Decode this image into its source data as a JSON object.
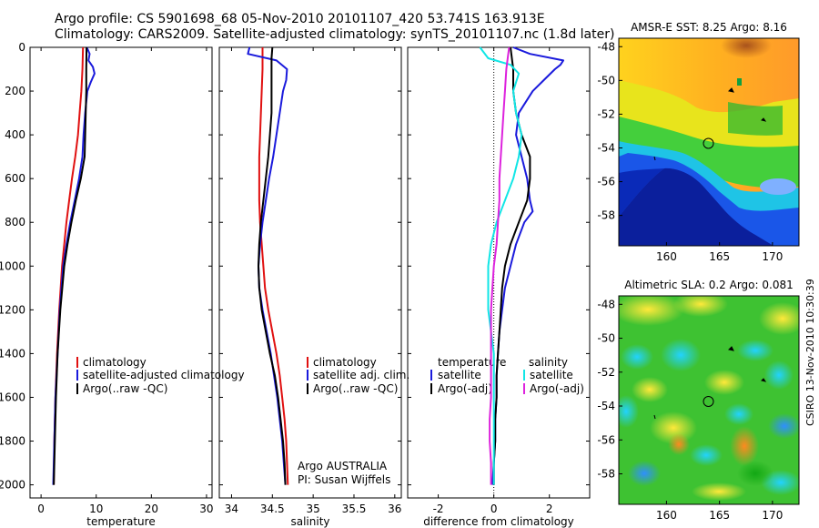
{
  "header": {
    "line1": "Argo profile: CS 5901698_68 05-Nov-2010 20101107_420 53.741S 163.913E",
    "line2": "Climatology: CARS2009. Satellite-adjusted climatology: synTS_20101107.nc (1.8d later)"
  },
  "stamp": "CSIRO 13-Nov-2010 10:30:39",
  "colors": {
    "red": "#e01010",
    "blue": "#1a1adc",
    "black": "#000000",
    "cyan": "#11e6e6",
    "magenta": "#dd22dd"
  },
  "chart_data": [
    {
      "type": "line",
      "xlabel": "temperature",
      "xticks": [
        0,
        10,
        20,
        30
      ],
      "xlim": [
        -2,
        31
      ],
      "yticks": [
        0,
        200,
        400,
        600,
        800,
        1000,
        1200,
        1400,
        1600,
        1800,
        2000
      ],
      "ylim": [
        2060,
        0
      ],
      "legend": {
        "placement": "lower-right",
        "entries": [
          "climatology",
          "satellite-adjusted climatology",
          "Argo(..raw -QC)"
        ]
      },
      "series": [
        {
          "name": "climatology",
          "color": "red",
          "depth": [
            0,
            100,
            200,
            300,
            400,
            500,
            600,
            700,
            800,
            900,
            1000,
            1200,
            1400,
            1600,
            1800,
            2000
          ],
          "values": [
            7.6,
            7.5,
            7.3,
            7.0,
            6.7,
            6.2,
            5.6,
            5.1,
            4.6,
            4.2,
            3.8,
            3.3,
            2.9,
            2.6,
            2.4,
            2.3
          ]
        },
        {
          "name": "satellite-adjusted climatology",
          "color": "blue",
          "depth": [
            0,
            30,
            60,
            90,
            120,
            160,
            200,
            300,
            400,
            500,
            600,
            700,
            800,
            900,
            1000,
            1200,
            1400,
            1600,
            1800,
            2000
          ],
          "values": [
            8.3,
            8.8,
            8.6,
            9.4,
            9.7,
            9.0,
            8.4,
            8.0,
            7.7,
            7.5,
            6.9,
            6.1,
            5.3,
            4.6,
            4.0,
            3.4,
            3.0,
            2.6,
            2.4,
            2.2
          ]
        },
        {
          "name": "Argo(..raw -QC)",
          "color": "black",
          "depth": [
            0,
            100,
            200,
            300,
            400,
            500,
            600,
            700,
            800,
            900,
            1000,
            1200,
            1400,
            1600,
            1700,
            1800,
            1900,
            2000
          ],
          "values": [
            8.25,
            8.2,
            8.2,
            8.1,
            8.0,
            7.9,
            7.2,
            6.3,
            5.5,
            4.8,
            4.2,
            3.5,
            3.0,
            2.7,
            2.6,
            2.5,
            2.4,
            2.3
          ]
        }
      ]
    },
    {
      "type": "line",
      "xlabel": "salinity",
      "xticks": [
        34,
        34.5,
        35,
        35.5,
        36
      ],
      "xlim": [
        33.85,
        36.08
      ],
      "yticks": [],
      "ylim": [
        2060,
        0
      ],
      "legend": {
        "placement": "lower-right",
        "entries": [
          "climatology",
          "satellite adj. clim.",
          "Argo(..raw -QC)"
        ]
      },
      "annotations": [
        "Argo AUSTRALIA",
        "PI: Susan Wijffels"
      ],
      "series": [
        {
          "name": "climatology",
          "color": "red",
          "depth": [
            0,
            100,
            200,
            300,
            400,
            500,
            600,
            700,
            800,
            900,
            1000,
            1100,
            1200,
            1300,
            1400,
            1500,
            1600,
            1700,
            1800,
            1900,
            2000
          ],
          "values": [
            34.38,
            34.38,
            34.37,
            34.36,
            34.35,
            34.34,
            34.34,
            34.34,
            34.35,
            34.37,
            34.39,
            34.41,
            34.45,
            34.5,
            34.55,
            34.59,
            34.62,
            34.65,
            34.67,
            34.68,
            34.69
          ]
        },
        {
          "name": "satellite adj. clim.",
          "color": "blue",
          "depth": [
            0,
            30,
            60,
            100,
            150,
            200,
            300,
            400,
            500,
            600,
            700,
            800,
            900,
            1000,
            1100,
            1200,
            1400,
            1600,
            1800,
            2000
          ],
          "values": [
            34.22,
            34.2,
            34.55,
            34.68,
            34.67,
            34.63,
            34.59,
            34.55,
            34.51,
            34.46,
            34.42,
            34.38,
            34.35,
            34.33,
            34.34,
            34.38,
            34.48,
            34.56,
            34.62,
            34.66
          ]
        },
        {
          "name": "Argo(..raw -QC)",
          "color": "black",
          "depth": [
            0,
            50,
            100,
            200,
            300,
            400,
            500,
            600,
            700,
            800,
            900,
            1000,
            1100,
            1200,
            1300,
            1400,
            1500,
            1600,
            1700,
            1800,
            1900,
            2000
          ],
          "values": [
            34.5,
            34.49,
            34.49,
            34.49,
            34.49,
            34.47,
            34.45,
            34.42,
            34.39,
            34.36,
            34.34,
            34.33,
            34.34,
            34.37,
            34.42,
            34.47,
            34.53,
            34.57,
            34.6,
            34.63,
            34.65,
            34.66
          ]
        }
      ]
    },
    {
      "type": "line",
      "xlabel": "difference from climatology",
      "xticks": [
        -2,
        0,
        2
      ],
      "xlim": [
        -3.1,
        3.45
      ],
      "yticks": [],
      "ylim": [
        2060,
        0
      ],
      "legend": {
        "placement": "lower-center",
        "groups": [
          {
            "title": "temperature",
            "entries": [
              "satellite",
              "Argo(-adj)"
            ]
          },
          {
            "title": "salinity",
            "entries": [
              "satellite",
              "Argo(-adj)"
            ]
          }
        ]
      },
      "series": [
        {
          "name": "temperature satellite",
          "color": "blue",
          "depth": [
            0,
            30,
            60,
            80,
            100,
            150,
            200,
            300,
            400,
            500,
            600,
            700,
            750,
            800,
            900,
            1000,
            1100,
            1200,
            1300,
            1400,
            1500,
            1600,
            1700,
            1800,
            1900,
            2000
          ],
          "values": [
            0.7,
            1.3,
            2.5,
            2.4,
            2.2,
            1.8,
            1.4,
            0.9,
            0.8,
            1.0,
            1.2,
            1.3,
            1.4,
            1.1,
            0.8,
            0.6,
            0.4,
            0.3,
            0.2,
            0.15,
            0.1,
            0.1,
            0.05,
            0.05,
            0.0,
            -0.05
          ]
        },
        {
          "name": "temperature Argo(-adj)",
          "color": "black",
          "depth": [
            0,
            50,
            100,
            200,
            300,
            400,
            500,
            600,
            700,
            800,
            900,
            1000,
            1100,
            1200,
            1300,
            1400,
            1500,
            1600,
            1700,
            1800,
            1900,
            2000
          ],
          "values": [
            0.6,
            0.65,
            0.7,
            0.7,
            0.8,
            1.0,
            1.3,
            1.3,
            1.2,
            0.9,
            0.6,
            0.4,
            0.3,
            0.25,
            0.2,
            0.15,
            0.1,
            0.1,
            0.05,
            0.05,
            0.0,
            0.0
          ]
        },
        {
          "name": "salinity satellite",
          "color": "cyan",
          "depth": [
            0,
            50,
            80,
            120,
            200,
            300,
            400,
            500,
            600,
            700,
            800,
            900,
            1000,
            1100,
            1200,
            1300,
            1400,
            1500,
            1600,
            1700,
            1800,
            1900,
            2000
          ],
          "values": [
            -0.5,
            -0.2,
            0.6,
            0.9,
            0.7,
            0.8,
            1.0,
            0.9,
            0.7,
            0.4,
            0.1,
            -0.1,
            -0.2,
            -0.2,
            -0.2,
            -0.1,
            0.0,
            0.0,
            0.0,
            0.0,
            0.0,
            0.0,
            0.0
          ]
        },
        {
          "name": "salinity Argo(-adj)",
          "color": "magenta",
          "depth": [
            0,
            50,
            100,
            200,
            300,
            400,
            500,
            600,
            700,
            800,
            900,
            1000,
            1100,
            1200,
            1300,
            1400,
            1500,
            1600,
            1700,
            1800,
            1900,
            2000
          ],
          "values": [
            0.55,
            0.5,
            0.45,
            0.4,
            0.35,
            0.3,
            0.25,
            0.2,
            0.2,
            0.15,
            0.1,
            0.0,
            -0.05,
            -0.1,
            -0.1,
            -0.1,
            -0.1,
            -0.1,
            -0.15,
            -0.15,
            -0.1,
            -0.1
          ]
        }
      ]
    },
    {
      "type": "heatmap",
      "title": "AMSR-E SST: 8.25 Argo: 8.16",
      "xticks": [
        160,
        165,
        170
      ],
      "yticks": [
        -48,
        -50,
        -52,
        -54,
        -56,
        -58
      ],
      "xlim": [
        155.5,
        172.5
      ],
      "ylim": [
        -59.8,
        -47.5
      ],
      "marker": {
        "lon": 163.913,
        "lat": -53.741
      }
    },
    {
      "type": "heatmap",
      "title": "Altimetric SLA: 0.2 Argo: 0.081",
      "xticks": [
        160,
        165,
        170
      ],
      "yticks": [
        -48,
        -50,
        -52,
        -54,
        -56,
        -58
      ],
      "xlim": [
        155.5,
        172.5
      ],
      "ylim": [
        -59.8,
        -47.5
      ],
      "marker": {
        "lon": 163.913,
        "lat": -53.741
      }
    }
  ]
}
